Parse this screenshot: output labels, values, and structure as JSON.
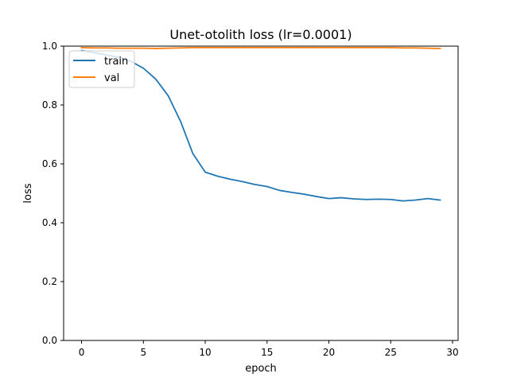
{
  "chart_data": {
    "type": "line",
    "title": "Unet-otolith loss (lr=0.0001)",
    "xlabel": "epoch",
    "ylabel": "loss",
    "xlim": [
      -1.45,
      30.45
    ],
    "ylim": [
      0.0,
      1.0
    ],
    "xticks": [
      0,
      5,
      10,
      15,
      20,
      25,
      30
    ],
    "yticks": [
      0.0,
      0.2,
      0.4,
      0.6,
      0.8,
      1.0
    ],
    "xtick_labels": [
      "0",
      "5",
      "10",
      "15",
      "20",
      "25",
      "30"
    ],
    "ytick_labels": [
      "0.0",
      "0.2",
      "0.4",
      "0.6",
      "0.8",
      "1.0"
    ],
    "grid": false,
    "legend_position": "top-left",
    "x": [
      0,
      1,
      2,
      3,
      4,
      5,
      6,
      7,
      8,
      9,
      10,
      11,
      12,
      13,
      14,
      15,
      16,
      17,
      18,
      19,
      20,
      21,
      22,
      23,
      24,
      25,
      26,
      27,
      28,
      29
    ],
    "series": [
      {
        "name": "train",
        "color": "#1f77b4",
        "values": [
          0.985,
          0.978,
          0.97,
          0.962,
          0.948,
          0.925,
          0.888,
          0.832,
          0.745,
          0.635,
          0.572,
          0.558,
          0.548,
          0.54,
          0.53,
          0.523,
          0.51,
          0.503,
          0.497,
          0.489,
          0.482,
          0.485,
          0.481,
          0.479,
          0.48,
          0.479,
          0.474,
          0.477,
          0.482,
          0.477
        ]
      },
      {
        "name": "val",
        "color": "#ff7f0e",
        "values": [
          0.995,
          0.994,
          0.994,
          0.993,
          0.993,
          0.993,
          0.992,
          0.993,
          0.994,
          0.995,
          0.995,
          0.995,
          0.995,
          0.995,
          0.995,
          0.995,
          0.995,
          0.995,
          0.995,
          0.995,
          0.995,
          0.995,
          0.995,
          0.995,
          0.995,
          0.995,
          0.994,
          0.994,
          0.993,
          0.992
        ]
      }
    ]
  }
}
